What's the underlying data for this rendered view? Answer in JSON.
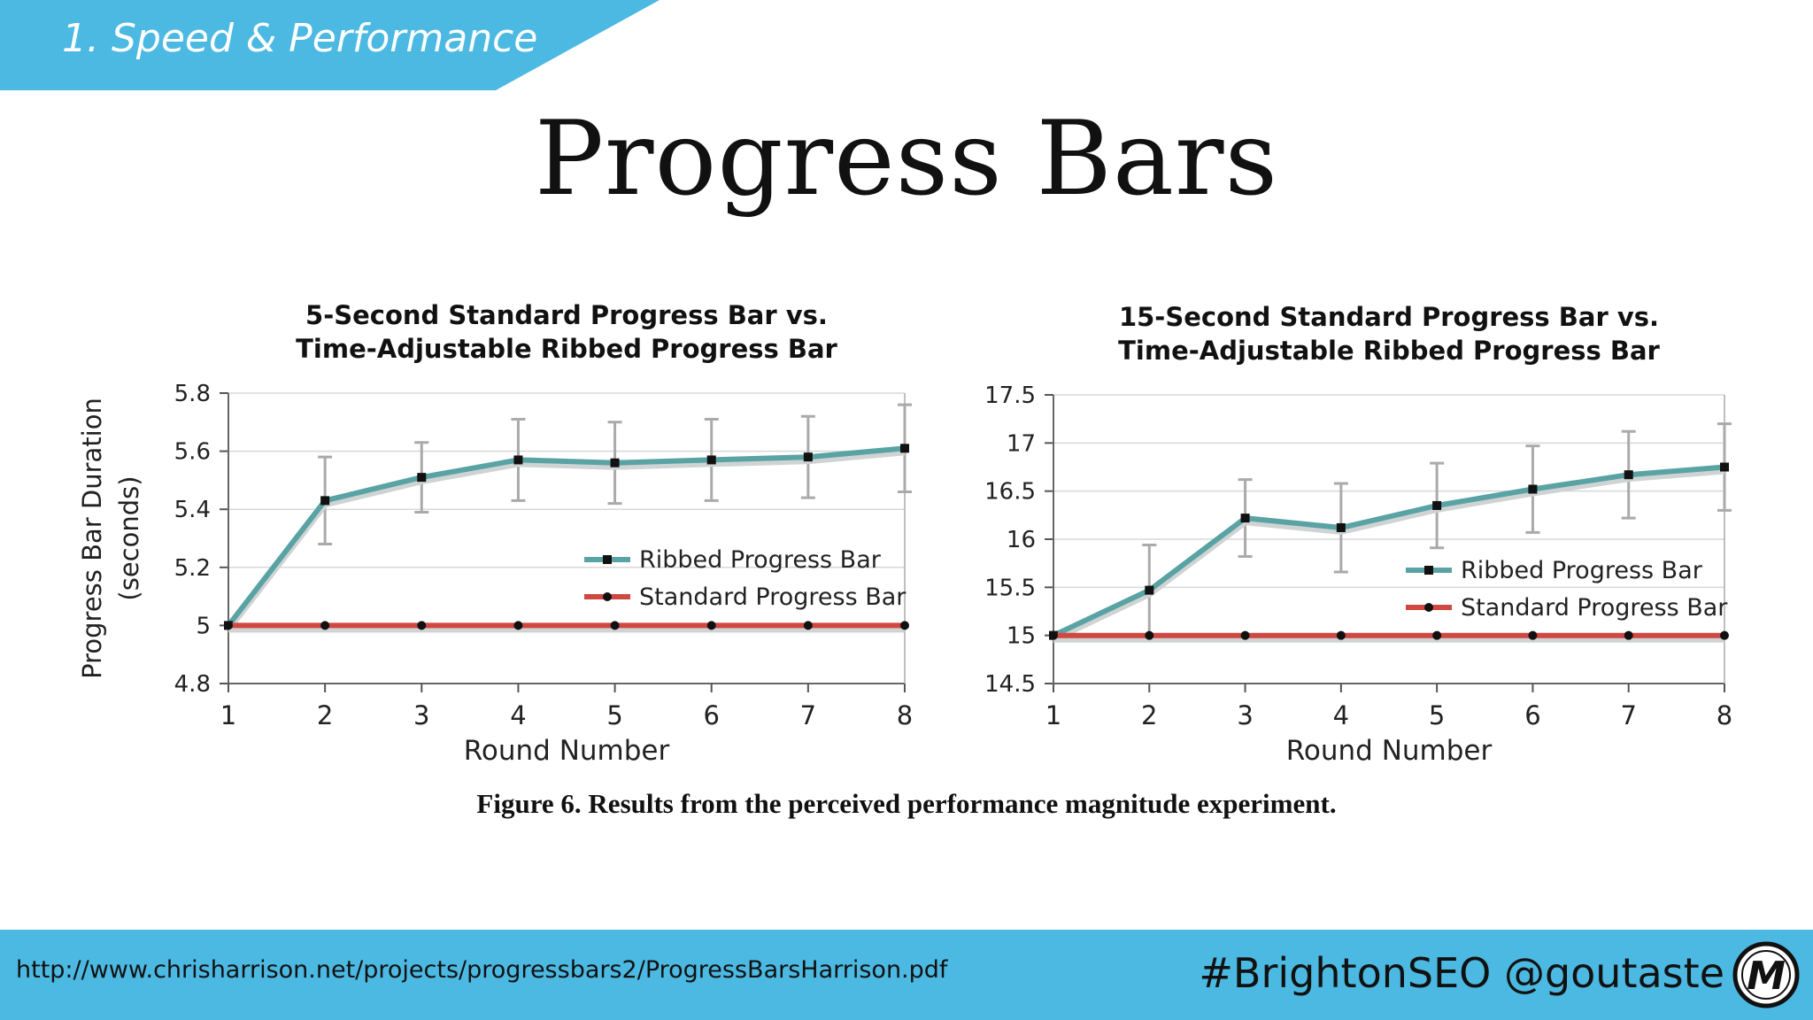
{
  "slide": {
    "section_label": "1. Speed & Performance",
    "title": "Progress Bars",
    "caption": "Figure 6. Results from the perceived performance magnitude experiment.",
    "footer_url": "http://www.chrisharrison.net/projects/progressbars2/ProgressBarsHarrison.pdf",
    "footer_tags": "#BrightonSEO @goutaste",
    "logo_letter": "M",
    "banner_color": "#4cb9e2"
  },
  "chart_data": [
    {
      "type": "line",
      "title": "5-Second Standard Progress Bar vs.",
      "subtitle": "Time-Adjustable Ribbed Progress Bar",
      "xlabel": "Round Number",
      "ylabel": "Progress Bar Duration",
      "ylabel2": "(seconds)",
      "x": [
        1,
        2,
        3,
        4,
        5,
        6,
        7,
        8
      ],
      "xticks": [
        "1",
        "2",
        "3",
        "4",
        "5",
        "6",
        "7",
        "8"
      ],
      "ylim": [
        4.8,
        5.8
      ],
      "yticks": [
        "4.8",
        "5",
        "5.2",
        "5.4",
        "5.6",
        "5.8"
      ],
      "grid": true,
      "legend": "right",
      "series": [
        {
          "name": "Ribbed Progress Bar",
          "color": "#5aa3a4",
          "marker": "square",
          "values": [
            5.0,
            5.43,
            5.51,
            5.57,
            5.56,
            5.57,
            5.58,
            5.61
          ],
          "error": [
            0,
            0.15,
            0.12,
            0.14,
            0.14,
            0.14,
            0.14,
            0.15
          ]
        },
        {
          "name": "Standard Progress Bar",
          "color": "#d04842",
          "marker": "circle",
          "values": [
            5,
            5,
            5,
            5,
            5,
            5,
            5,
            5
          ],
          "error": [
            0,
            0,
            0,
            0,
            0,
            0,
            0,
            0
          ]
        }
      ]
    },
    {
      "type": "line",
      "title": "15-Second Standard Progress Bar vs.",
      "subtitle": "Time-Adjustable Ribbed Progress Bar",
      "xlabel": "Round Number",
      "ylabel": "",
      "ylabel2": "",
      "x": [
        1,
        2,
        3,
        4,
        5,
        6,
        7,
        8
      ],
      "xticks": [
        "1",
        "2",
        "3",
        "4",
        "5",
        "6",
        "7",
        "8"
      ],
      "ylim": [
        14.5,
        17.5
      ],
      "yticks": [
        "14.5",
        "15",
        "15.5",
        "16",
        "16.5",
        "17",
        "17.5"
      ],
      "grid": true,
      "legend": "right",
      "series": [
        {
          "name": "Ribbed Progress Bar",
          "color": "#5aa3a4",
          "marker": "square",
          "values": [
            15.0,
            15.47,
            16.22,
            16.12,
            16.35,
            16.52,
            16.67,
            16.75
          ],
          "error": [
            0,
            0.47,
            0.4,
            0.46,
            0.44,
            0.45,
            0.45,
            0.45
          ]
        },
        {
          "name": "Standard Progress Bar",
          "color": "#d04842",
          "marker": "circle",
          "values": [
            15,
            15,
            15,
            15,
            15,
            15,
            15,
            15
          ],
          "error": [
            0,
            0,
            0,
            0,
            0,
            0,
            0,
            0
          ]
        }
      ]
    }
  ]
}
